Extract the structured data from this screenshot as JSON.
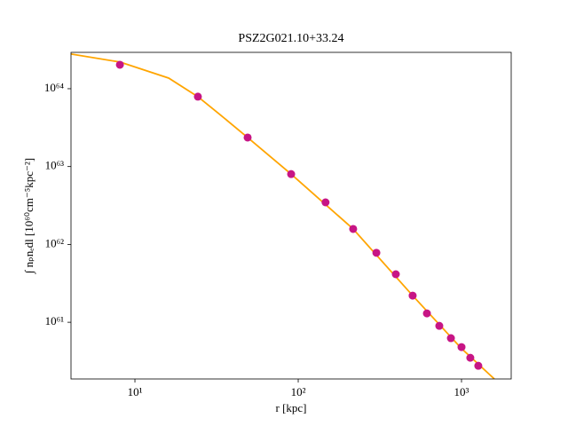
{
  "chart_data": {
    "type": "scatter",
    "title": "PSZ2G021.10+33.24",
    "x_label": "r [kpc]",
    "y_label": "∫ nₚnₑdl [10⁶⁰cm⁻⁵kpc⁻²]",
    "xscale": "log",
    "yscale": "log",
    "xlim": [
      4.06,
      2015
    ],
    "ylim": [
      1.87e+60,
      2.93e+64
    ],
    "xticks": [
      {
        "value": 10,
        "label": "10¹"
      },
      {
        "value": 100,
        "label": "10²"
      },
      {
        "value": 1000,
        "label": "10³"
      }
    ],
    "yticks": [
      {
        "value": 1e+61,
        "label": "10⁶¹"
      },
      {
        "value": 1e+62,
        "label": "10⁶²"
      },
      {
        "value": 1e+63,
        "label": "10⁶³"
      },
      {
        "value": 1e+64,
        "label": "10⁶⁴"
      }
    ],
    "line": {
      "color": "#ffa500",
      "x": [
        4.06,
        8.1,
        16.1,
        24.3,
        34.1,
        49,
        90.5,
        217,
        502,
        1000,
        1589
      ],
      "y": [
        2.79e+64,
        2.2e+64,
        1.37e+64,
        7.9e+63,
        4.44e+63,
        2.36e+63,
        8e+62,
        1.58e+62,
        2.2e+61,
        4.6e+60,
        1.87e+60
      ]
    },
    "points": {
      "color": "#c71585",
      "x": [
        8.09,
        24.3,
        49,
        90.5,
        147,
        217,
        301,
        396,
        502,
        614,
        731,
        861,
        1000,
        1132,
        1267
      ],
      "y": [
        2.03e+64,
        7.9e+63,
        2.36e+63,
        8e+62,
        3.47e+62,
        1.58e+62,
        7.8e+61,
        4.14e+61,
        2.2e+61,
        1.3e+61,
        9e+60,
        6.25e+60,
        4.8e+60,
        3.5e+60,
        2.76e+60
      ]
    }
  }
}
